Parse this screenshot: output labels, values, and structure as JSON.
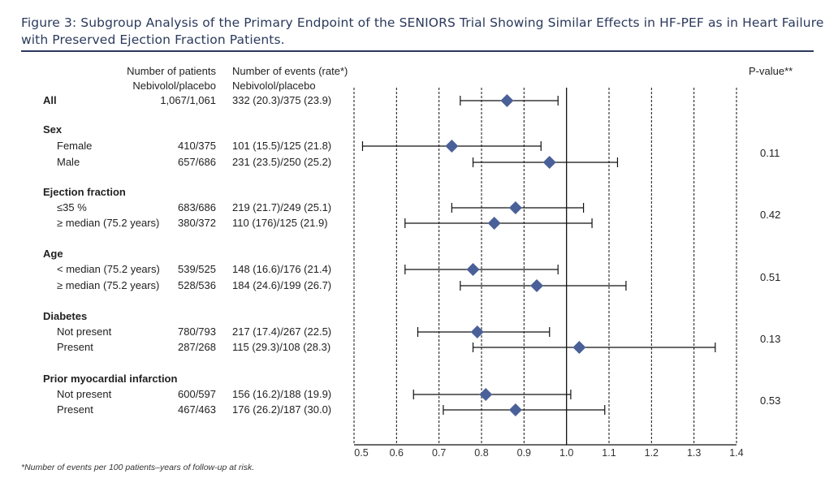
{
  "title": "Figure 3: Subgroup Analysis of the Primary Endpoint of the SENIORS Trial Showing Similar Effects in HF-PEF as in Heart Failure with Preserved Ejection Fraction Patients.",
  "headers": {
    "patients_line1": "Number of patients",
    "patients_line2": "Nebivolol/placebo",
    "events_line1": "Number of events (rate*)",
    "events_line2": "Nebivolol/placebo",
    "pvalue": "P-value**"
  },
  "groups": [
    {
      "label": "Sex",
      "pvalue": "0.11"
    },
    {
      "label": "Ejection fraction",
      "pvalue": "0.42"
    },
    {
      "label": "Age",
      "pvalue": "0.51"
    },
    {
      "label": "Diabetes",
      "pvalue": "0.13"
    },
    {
      "label": "Prior myocardial infarction",
      "pvalue": "0.53"
    }
  ],
  "rows": [
    {
      "label": "All",
      "patients": "1,067/1,061",
      "events": "332 (20.3)/375 (23.9)"
    },
    {
      "label": "Female",
      "patients": "410/375",
      "events": "101 (15.5)/125 (21.8)"
    },
    {
      "label": "Male",
      "patients": "657/686",
      "events": "231 (23.5)/250 (25.2)"
    },
    {
      "label": "≤35 %",
      "patients": "683/686",
      "events": "219 (21.7)/249 (25.1)"
    },
    {
      "label": "≥ median (75.2 years)",
      "patients": "380/372",
      "events": "110 (176)/125 (21.9)"
    },
    {
      "label": "< median (75.2 years)",
      "patients": "539/525",
      "events": "148 (16.6)/176 (21.4)"
    },
    {
      "label": "≥ median (75.2 years)",
      "patients": "528/536",
      "events": "184 (24.6)/199 (26.7)"
    },
    {
      "label": "Not present",
      "patients": "780/793",
      "events": "217 (17.4)/267 (22.5)"
    },
    {
      "label": "Present",
      "patients": "287/268",
      "events": "115 (29.3)/108 (28.3)"
    },
    {
      "label": "Not present",
      "patients": "600/597",
      "events": "156 (16.2)/188 (19.9)"
    },
    {
      "label": "Present",
      "patients": "467/463",
      "events": "176 (26.2)/187 (30.0)"
    }
  ],
  "footnote": "*Number of events per 100 patients–years of follow-up at risk.",
  "chart_data": {
    "type": "forest",
    "xlim": [
      0.5,
      1.4
    ],
    "xticks": [
      "0.5",
      "0.6",
      "0.7",
      "0.8",
      "0.9",
      "1.0",
      "1.1",
      "1.2",
      "1.3",
      "1.4"
    ],
    "reference_line": 1.0,
    "grid": true,
    "points": [
      {
        "row": "All",
        "estimate": 0.86,
        "lower": 0.75,
        "upper": 0.98
      },
      {
        "row": "Female",
        "estimate": 0.73,
        "lower": 0.52,
        "upper": 0.94
      },
      {
        "row": "Male",
        "estimate": 0.96,
        "lower": 0.78,
        "upper": 1.12
      },
      {
        "row": "≤35 %",
        "estimate": 0.88,
        "lower": 0.73,
        "upper": 1.04
      },
      {
        "row": "≥ median (75.2 years) EF",
        "estimate": 0.83,
        "lower": 0.62,
        "upper": 1.06
      },
      {
        "row": "< median (75.2 years)",
        "estimate": 0.78,
        "lower": 0.62,
        "upper": 0.98
      },
      {
        "row": "≥ median (75.2 years)",
        "estimate": 0.93,
        "lower": 0.75,
        "upper": 1.14
      },
      {
        "row": "Diabetes not present",
        "estimate": 0.79,
        "lower": 0.65,
        "upper": 0.96
      },
      {
        "row": "Diabetes present",
        "estimate": 1.03,
        "lower": 0.78,
        "upper": 1.35
      },
      {
        "row": "Prior MI not present",
        "estimate": 0.81,
        "lower": 0.64,
        "upper": 1.01
      },
      {
        "row": "Prior MI present",
        "estimate": 0.88,
        "lower": 0.71,
        "upper": 1.09
      }
    ],
    "marker_color": "#4a6098"
  }
}
